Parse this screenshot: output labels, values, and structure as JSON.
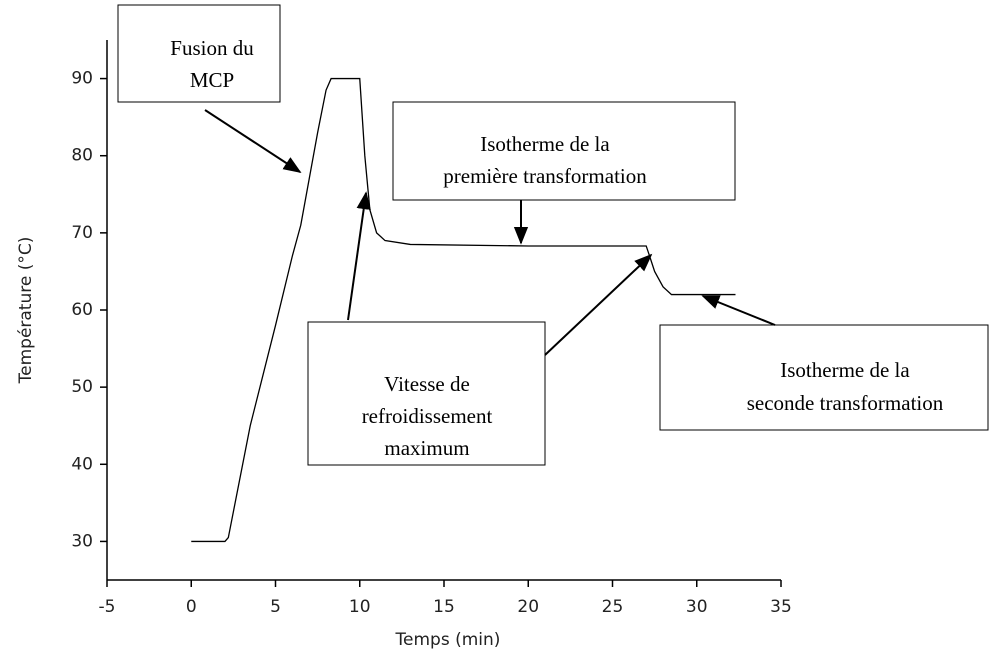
{
  "chart_data": {
    "type": "line",
    "x_label": "Temps (min)",
    "y_label": "Température (°C)",
    "xlim": [
      -5,
      35
    ],
    "xticks": [
      -5,
      0,
      5,
      10,
      15,
      20,
      25,
      30,
      35
    ],
    "ylim": [
      25,
      95
    ],
    "yticks": [
      30,
      40,
      50,
      60,
      70,
      80,
      90
    ],
    "series": [
      {
        "color": "#000000",
        "x": [
          0,
          2,
          2.2,
          3.5,
          5,
          6,
          6.5,
          7,
          7.5,
          8,
          8.3,
          10,
          10.3,
          10.6,
          11,
          11.5,
          13,
          20,
          27,
          27.2,
          27.5,
          28,
          28.5,
          32.3
        ],
        "values": [
          30,
          30,
          30.5,
          45,
          58,
          67,
          71,
          77,
          83,
          88.5,
          90,
          90,
          80,
          73,
          70,
          69,
          68.5,
          68.3,
          68.3,
          67,
          65,
          63,
          62,
          62
        ]
      }
    ],
    "annotations": [
      {
        "lines": [
          "Fusion du",
          "MCP"
        ]
      },
      {
        "lines": [
          "Isotherme de la",
          "première transformation"
        ]
      },
      {
        "lines": [
          "Vitesse de",
          "refroidissement",
          "maximum"
        ]
      },
      {
        "lines": [
          "Isotherme de la",
          "seconde transformation"
        ]
      }
    ]
  }
}
